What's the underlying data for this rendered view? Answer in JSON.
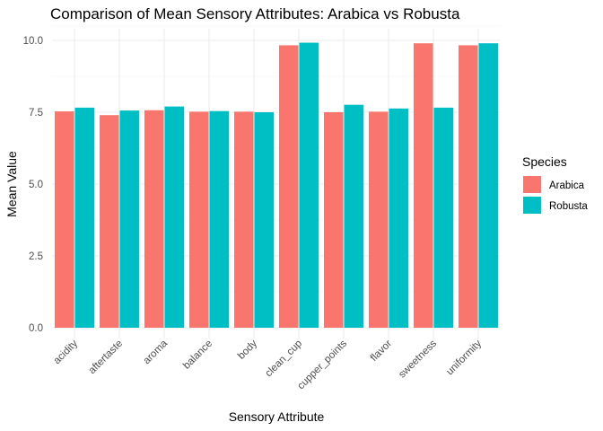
{
  "chart_data": {
    "type": "bar",
    "title": "Comparison of Mean Sensory Attributes: Arabica vs Robusta",
    "xlabel": "Sensory Attribute",
    "ylabel": "Mean Value",
    "categories": [
      "acidity",
      "aftertaste",
      "aroma",
      "balance",
      "body",
      "clean_cup",
      "cupper_points",
      "flavor",
      "sweetness",
      "uniformity"
    ],
    "series": [
      {
        "name": "Arabica",
        "color": "#F8766D",
        "values": [
          7.53,
          7.4,
          7.57,
          7.52,
          7.52,
          9.83,
          7.5,
          7.52,
          9.9,
          9.83
        ]
      },
      {
        "name": "Robusta",
        "color": "#00BFC4",
        "values": [
          7.66,
          7.56,
          7.7,
          7.54,
          7.5,
          9.92,
          7.76,
          7.63,
          7.66,
          9.9
        ]
      }
    ],
    "ylim": [
      0,
      10.5
    ],
    "yticks": [
      0,
      2.5,
      5,
      7.5,
      10
    ],
    "ytick_labels": [
      "0.0",
      "2.5",
      "5.0",
      "7.5",
      "10.0"
    ],
    "legend": {
      "title": "Species",
      "position": "right"
    },
    "grid": true
  }
}
